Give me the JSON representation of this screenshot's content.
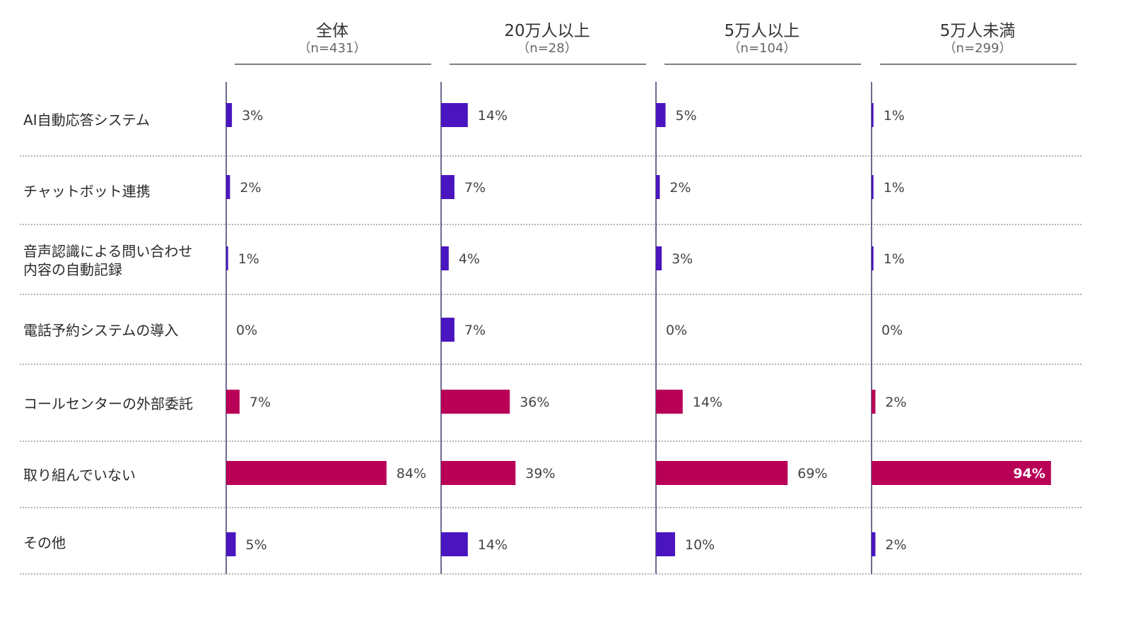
{
  "chart_data": {
    "type": "bar",
    "orientation": "horizontal",
    "panels": [
      {
        "title": "全体",
        "n_label": "（n=431）"
      },
      {
        "title": "20万人以上",
        "n_label": "（n=28）"
      },
      {
        "title": "5万人以上",
        "n_label": "（n=104）"
      },
      {
        "title": "5万人未満",
        "n_label": "（n=299）"
      }
    ],
    "categories": [
      "AI自動応答システム",
      "チャットボット連携",
      "音声認識による問い合わせ\n内容の自動記録",
      "電話予約システムの導入",
      "コールセンターの外部委託",
      "取り組んでいない",
      "その他"
    ],
    "series": [
      {
        "values": [
          3,
          2,
          1,
          0,
          7,
          84,
          5
        ],
        "labels": [
          "3%",
          "2%",
          "1%",
          "0%",
          "7%",
          "84%",
          "5%"
        ]
      },
      {
        "values": [
          14,
          7,
          4,
          7,
          36,
          39,
          14
        ],
        "labels": [
          "14%",
          "7%",
          "4%",
          "7%",
          "36%",
          "39%",
          "14%"
        ]
      },
      {
        "values": [
          5,
          2,
          3,
          0,
          14,
          69,
          10
        ],
        "labels": [
          "5%",
          "2%",
          "3%",
          "0%",
          "14%",
          "69%",
          "10%"
        ]
      },
      {
        "values": [
          1,
          1,
          1,
          0,
          2,
          94,
          2
        ],
        "labels": [
          "1%",
          "1%",
          "1%",
          "0%",
          "2%",
          "94%",
          "2%"
        ]
      }
    ],
    "highlight_categories": [
      "コールセンターの外部委託",
      "取り組んでいない"
    ],
    "xlim": [
      0,
      100
    ],
    "colors": {
      "default": "#4a15bf",
      "highlight": "#b80057",
      "axis": "#3a3a6a",
      "grid": "#888888"
    }
  }
}
